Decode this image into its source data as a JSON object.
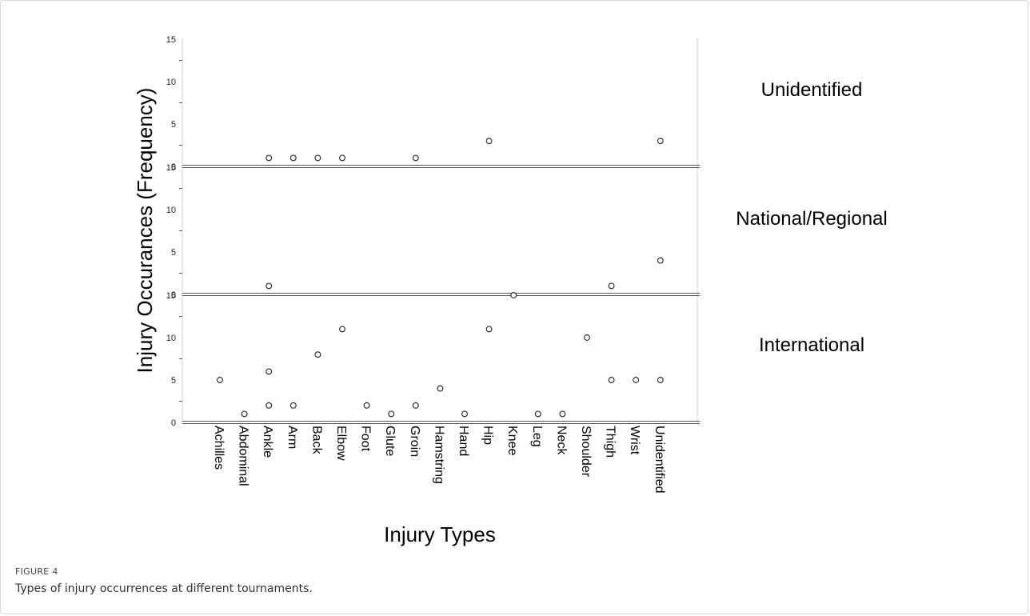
{
  "figure": {
    "label": "FIGURE 4",
    "caption": "Types of injury occurrences at different tournaments."
  },
  "chart_data": {
    "type": "scatter",
    "xlabel": "Injury Types",
    "ylabel": "Injury Occurances (Frequency)",
    "categories": [
      "Achilles",
      "Abdominal",
      "Ankle",
      "Arm",
      "Back",
      "Elbow",
      "Foot",
      "Glute",
      "Groin",
      "Hamstring",
      "Hand",
      "Hip",
      "Knee",
      "Leg",
      "Neck",
      "Shoulder",
      "Thigh",
      "Wrist",
      "Unidentified"
    ],
    "ylim": [
      0,
      15
    ],
    "yticks": [
      0,
      5,
      10,
      15
    ],
    "panels": [
      {
        "name": "Unidentified",
        "points": [
          {
            "category": "Ankle",
            "value": 1
          },
          {
            "category": "Arm",
            "value": 1
          },
          {
            "category": "Back",
            "value": 1
          },
          {
            "category": "Elbow",
            "value": 1
          },
          {
            "category": "Groin",
            "value": 1
          },
          {
            "category": "Hip",
            "value": 3
          },
          {
            "category": "Unidentified",
            "value": 3
          }
        ]
      },
      {
        "name": "National/Regional",
        "points": [
          {
            "category": "Ankle",
            "value": 1
          },
          {
            "category": "Thigh",
            "value": 1
          },
          {
            "category": "Unidentified",
            "value": 4
          }
        ]
      },
      {
        "name": "International",
        "points": [
          {
            "category": "Achilles",
            "value": 5
          },
          {
            "category": "Abdominal",
            "value": 1
          },
          {
            "category": "Ankle",
            "value": 6
          },
          {
            "category": "Ankle",
            "value": 2
          },
          {
            "category": "Arm",
            "value": 2
          },
          {
            "category": "Back",
            "value": 8
          },
          {
            "category": "Elbow",
            "value": 11
          },
          {
            "category": "Foot",
            "value": 2
          },
          {
            "category": "Glute",
            "value": 1
          },
          {
            "category": "Groin",
            "value": 2
          },
          {
            "category": "Hamstring",
            "value": 4
          },
          {
            "category": "Hand",
            "value": 1
          },
          {
            "category": "Hip",
            "value": 11
          },
          {
            "category": "Knee",
            "value": 15
          },
          {
            "category": "Leg",
            "value": 1
          },
          {
            "category": "Neck",
            "value": 1
          },
          {
            "category": "Shoulder",
            "value": 10
          },
          {
            "category": "Thigh",
            "value": 5
          },
          {
            "category": "Wrist",
            "value": 5
          },
          {
            "category": "Unidentified",
            "value": 5
          }
        ]
      }
    ]
  }
}
